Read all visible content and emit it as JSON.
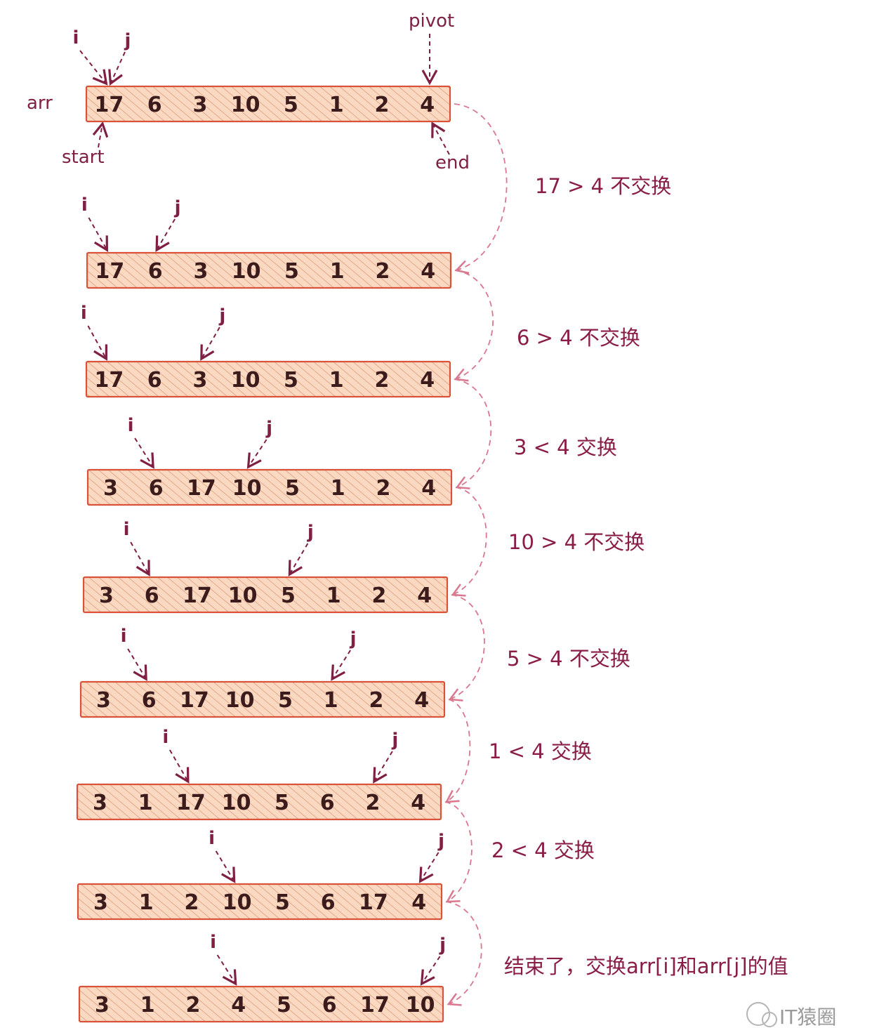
{
  "labels": {
    "arr": "arr",
    "start": "start",
    "end": "end",
    "pivot": "pivot",
    "i": "i",
    "j": "j"
  },
  "steps": [
    {
      "values": [
        "17",
        "6",
        "3",
        "10",
        "5",
        "1",
        "2",
        "4"
      ],
      "i": 0,
      "j": 0,
      "note": "17 > 4 不交换"
    },
    {
      "values": [
        "17",
        "6",
        "3",
        "10",
        "5",
        "1",
        "2",
        "4"
      ],
      "i": 0,
      "j": 1,
      "note": "6 > 4 不交换"
    },
    {
      "values": [
        "17",
        "6",
        "3",
        "10",
        "5",
        "1",
        "2",
        "4"
      ],
      "i": 0,
      "j": 2,
      "note": "3 < 4 交换"
    },
    {
      "values": [
        "3",
        "6",
        "17",
        "10",
        "5",
        "1",
        "2",
        "4"
      ],
      "i": 1,
      "j": 3,
      "note": "10 > 4 不交换"
    },
    {
      "values": [
        "3",
        "6",
        "17",
        "10",
        "5",
        "1",
        "2",
        "4"
      ],
      "i": 1,
      "j": 4,
      "note": "5 > 4 不交换"
    },
    {
      "values": [
        "3",
        "6",
        "17",
        "10",
        "5",
        "1",
        "2",
        "4"
      ],
      "i": 1,
      "j": 5,
      "note": "1 < 4 交换"
    },
    {
      "values": [
        "3",
        "1",
        "17",
        "10",
        "5",
        "6",
        "2",
        "4"
      ],
      "i": 2,
      "j": 6,
      "note": "2 < 4 交换"
    },
    {
      "values": [
        "3",
        "1",
        "2",
        "10",
        "5",
        "6",
        "17",
        "4"
      ],
      "i": 3,
      "j": 7,
      "note": "结束了，交换arr[i]和arr[j]的值"
    },
    {
      "values": [
        "3",
        "1",
        "2",
        "4",
        "5",
        "6",
        "17",
        "10"
      ],
      "i": 3,
      "j": 7,
      "note": ""
    }
  ],
  "watermark": "IT猿圈",
  "colors": {
    "cell_fill": "#f9d9c1",
    "cell_stroke": "#d9523a",
    "hatch": "#e8a889",
    "ink": "#7f1f44",
    "curve": "#d9788f"
  }
}
